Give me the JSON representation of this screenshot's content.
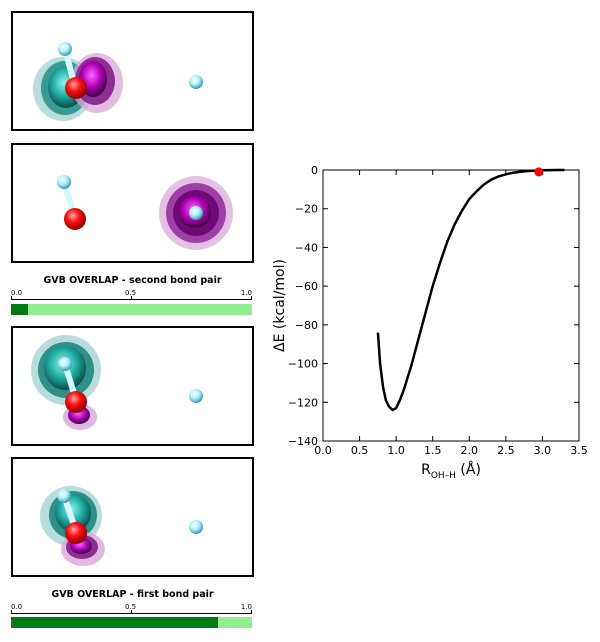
{
  "panels": [
    {
      "id": "second-pair-orbital-a"
    },
    {
      "id": "second-pair-orbital-b"
    },
    {
      "id": "first-pair-orbital-a"
    },
    {
      "id": "first-pair-orbital-b"
    }
  ],
  "overlap_second": {
    "title": "GVB OVERLAP - second bond pair",
    "ticks": [
      "0.0",
      "0.5",
      "1.0"
    ],
    "value": 0.07
  },
  "overlap_first": {
    "title": "GVB OVERLAP - first bond pair",
    "ticks": [
      "0.0",
      "0.5",
      "1.0"
    ],
    "value": 0.86
  },
  "colors": {
    "bar_fill": "#007a12",
    "bar_bg": "#90ee90",
    "oxygen": "#ff0000",
    "hydrogen": "#b0f0ff",
    "orbital_cyan": "#20b2aa",
    "orbital_magenta": "#9400a0",
    "curve": "#000000",
    "marker": "#ff0000"
  },
  "chart_data": {
    "type": "line",
    "xlabel_main": "R",
    "xlabel_sub": "OH–H",
    "xlabel_unit": "(Å)",
    "ylabel": "ΔE  (kcal/mol)",
    "xlim": [
      0.0,
      3.5
    ],
    "ylim": [
      -140,
      0
    ],
    "xticks": [
      "0.0",
      "0.5",
      "1.0",
      "1.5",
      "2.0",
      "2.5",
      "3.0",
      "3.5"
    ],
    "yticks": [
      "0",
      "−20",
      "−40",
      "−60",
      "−80",
      "−100",
      "−120",
      "−140"
    ],
    "series": [
      {
        "x": [
          0.75,
          0.78,
          0.82,
          0.86,
          0.9,
          0.95,
          1.0,
          1.05,
          1.1,
          1.2,
          1.3,
          1.4,
          1.5,
          1.6,
          1.7,
          1.8,
          1.9,
          2.0,
          2.1,
          2.2,
          2.3,
          2.4,
          2.5,
          2.6,
          2.7,
          2.8,
          2.9,
          3.0,
          3.1,
          3.2,
          3.3
        ],
        "y": [
          -84,
          -100,
          -112,
          -119,
          -122,
          -124,
          -123,
          -119,
          -114,
          -102,
          -88,
          -74,
          -60,
          -48,
          -37,
          -28,
          -21,
          -15,
          -11,
          -7.5,
          -5,
          -3.3,
          -2.2,
          -1.4,
          -0.9,
          -0.5,
          -0.3,
          -0.15,
          -0.05,
          0,
          0
        ]
      }
    ],
    "marker": {
      "x": 2.95,
      "y": -1
    }
  }
}
